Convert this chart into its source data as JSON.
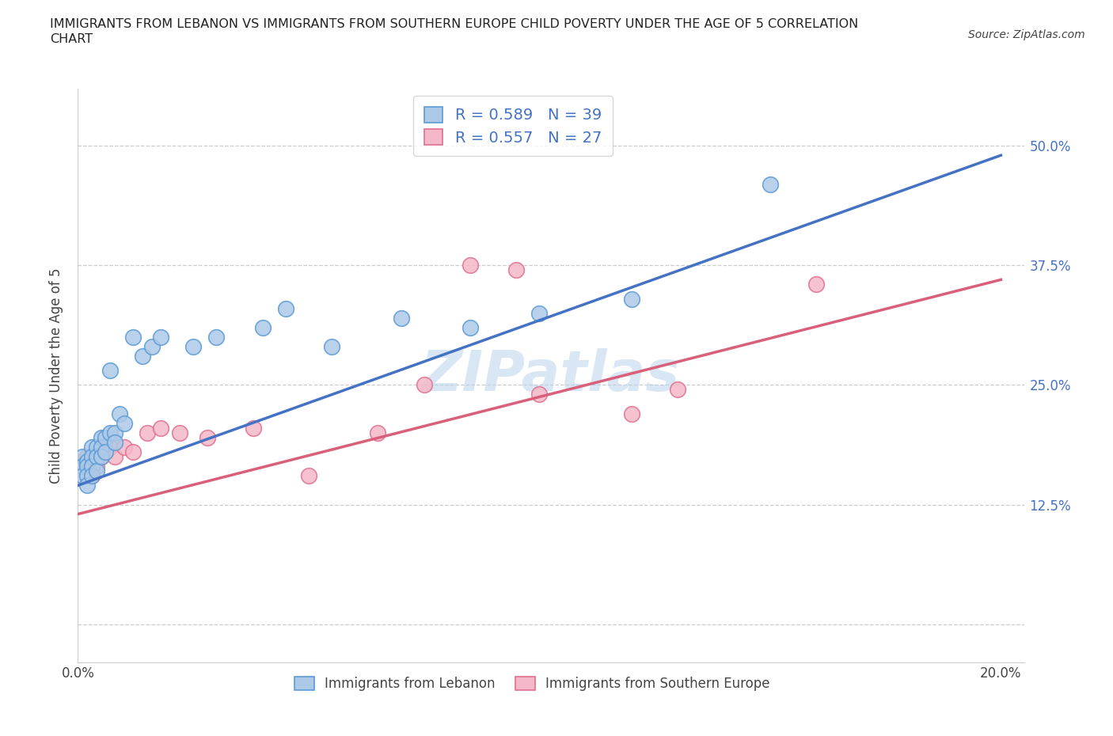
{
  "title_line1": "IMMIGRANTS FROM LEBANON VS IMMIGRANTS FROM SOUTHERN EUROPE CHILD POVERTY UNDER THE AGE OF 5 CORRELATION",
  "title_line2": "CHART",
  "source_text": "Source: ZipAtlas.com",
  "ylabel": "Child Poverty Under the Age of 5",
  "lebanon_color": "#adc9e8",
  "lebanon_edge": "#5b9bd5",
  "s_europe_color": "#f4b8c8",
  "s_europe_edge": "#e07090",
  "line_lebanon_color": "#4472c4",
  "line_s_europe_color": "#d9607a",
  "R_lebanon": 0.589,
  "N_lebanon": 39,
  "R_s_europe": 0.557,
  "N_s_europe": 27,
  "legend_label_1": "Immigrants from Lebanon",
  "legend_label_2": "Immigrants from Southern Europe",
  "watermark": "ZIPatlas",
  "lebanon_x": [
    0.001,
    0.001,
    0.001,
    0.002,
    0.002,
    0.002,
    0.002,
    0.003,
    0.003,
    0.003,
    0.003,
    0.004,
    0.004,
    0.004,
    0.005,
    0.005,
    0.005,
    0.006,
    0.006,
    0.007,
    0.007,
    0.008,
    0.008,
    0.009,
    0.01,
    0.012,
    0.014,
    0.016,
    0.018,
    0.025,
    0.03,
    0.04,
    0.045,
    0.055,
    0.07,
    0.085,
    0.1,
    0.12,
    0.15
  ],
  "lebanon_y": [
    0.175,
    0.165,
    0.155,
    0.17,
    0.165,
    0.155,
    0.145,
    0.185,
    0.175,
    0.165,
    0.155,
    0.185,
    0.175,
    0.16,
    0.195,
    0.185,
    0.175,
    0.195,
    0.18,
    0.2,
    0.265,
    0.2,
    0.19,
    0.22,
    0.21,
    0.3,
    0.28,
    0.29,
    0.3,
    0.29,
    0.3,
    0.31,
    0.33,
    0.29,
    0.32,
    0.31,
    0.325,
    0.34,
    0.46
  ],
  "s_europe_x": [
    0.001,
    0.001,
    0.002,
    0.002,
    0.003,
    0.003,
    0.004,
    0.005,
    0.006,
    0.007,
    0.008,
    0.01,
    0.012,
    0.015,
    0.018,
    0.022,
    0.028,
    0.038,
    0.05,
    0.065,
    0.075,
    0.085,
    0.095,
    0.1,
    0.12,
    0.13,
    0.16
  ],
  "s_europe_y": [
    0.17,
    0.165,
    0.175,
    0.165,
    0.175,
    0.155,
    0.165,
    0.175,
    0.18,
    0.185,
    0.175,
    0.185,
    0.18,
    0.2,
    0.205,
    0.2,
    0.195,
    0.205,
    0.155,
    0.2,
    0.25,
    0.375,
    0.37,
    0.24,
    0.22,
    0.245,
    0.355
  ],
  "line_leb_x0": 0.0,
  "line_leb_y0": 0.145,
  "line_leb_x1": 0.2,
  "line_leb_y1": 0.49,
  "line_se_x0": 0.0,
  "line_se_y0": 0.115,
  "line_se_x1": 0.2,
  "line_se_y1": 0.36,
  "xlim": [
    0.0,
    0.205
  ],
  "ylim_low": -0.04,
  "ylim_high": 0.56,
  "ytick_vals": [
    0.0,
    0.125,
    0.25,
    0.375,
    0.5
  ],
  "ytick_labels": [
    "",
    "12.5%",
    "25.0%",
    "37.5%",
    "50.0%"
  ],
  "xtick_vals": [
    0.0,
    0.05,
    0.1,
    0.15,
    0.2
  ],
  "xtick_labels": [
    "0.0%",
    "",
    "",
    "",
    "20.0%"
  ]
}
